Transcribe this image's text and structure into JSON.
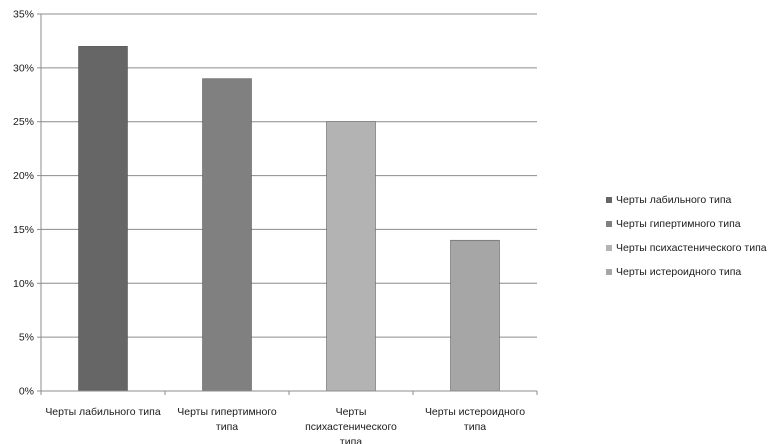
{
  "chart_data": {
    "type": "bar",
    "categories": [
      [
        "Черты лабильного типа"
      ],
      [
        "Черты гипертимного",
        "типа"
      ],
      [
        "Черты",
        "психастенического",
        "типа"
      ],
      [
        "Черты истероидного",
        "типа"
      ]
    ],
    "series": [
      {
        "name": "Черты лабильного типа",
        "color": "#666666",
        "values": [
          0.32,
          null,
          null,
          null
        ]
      },
      {
        "name": "Черты гипертимного типа",
        "color": "#808080",
        "values": [
          null,
          0.29,
          null,
          null
        ]
      },
      {
        "name": "Черты психастенического типа",
        "color": "#b3b3b3",
        "values": [
          null,
          null,
          0.25,
          null
        ]
      },
      {
        "name": "Черты истероидного типа",
        "color": "#a6a6a6",
        "values": [
          null,
          null,
          null,
          0.14
        ]
      }
    ],
    "ylim": [
      0,
      0.35
    ],
    "yticks": [
      "0%",
      "5%",
      "10%",
      "15%",
      "20%",
      "25%",
      "30%",
      "35%"
    ],
    "grid": true,
    "legend_position": "right",
    "title": "",
    "xlabel": "",
    "ylabel": ""
  }
}
